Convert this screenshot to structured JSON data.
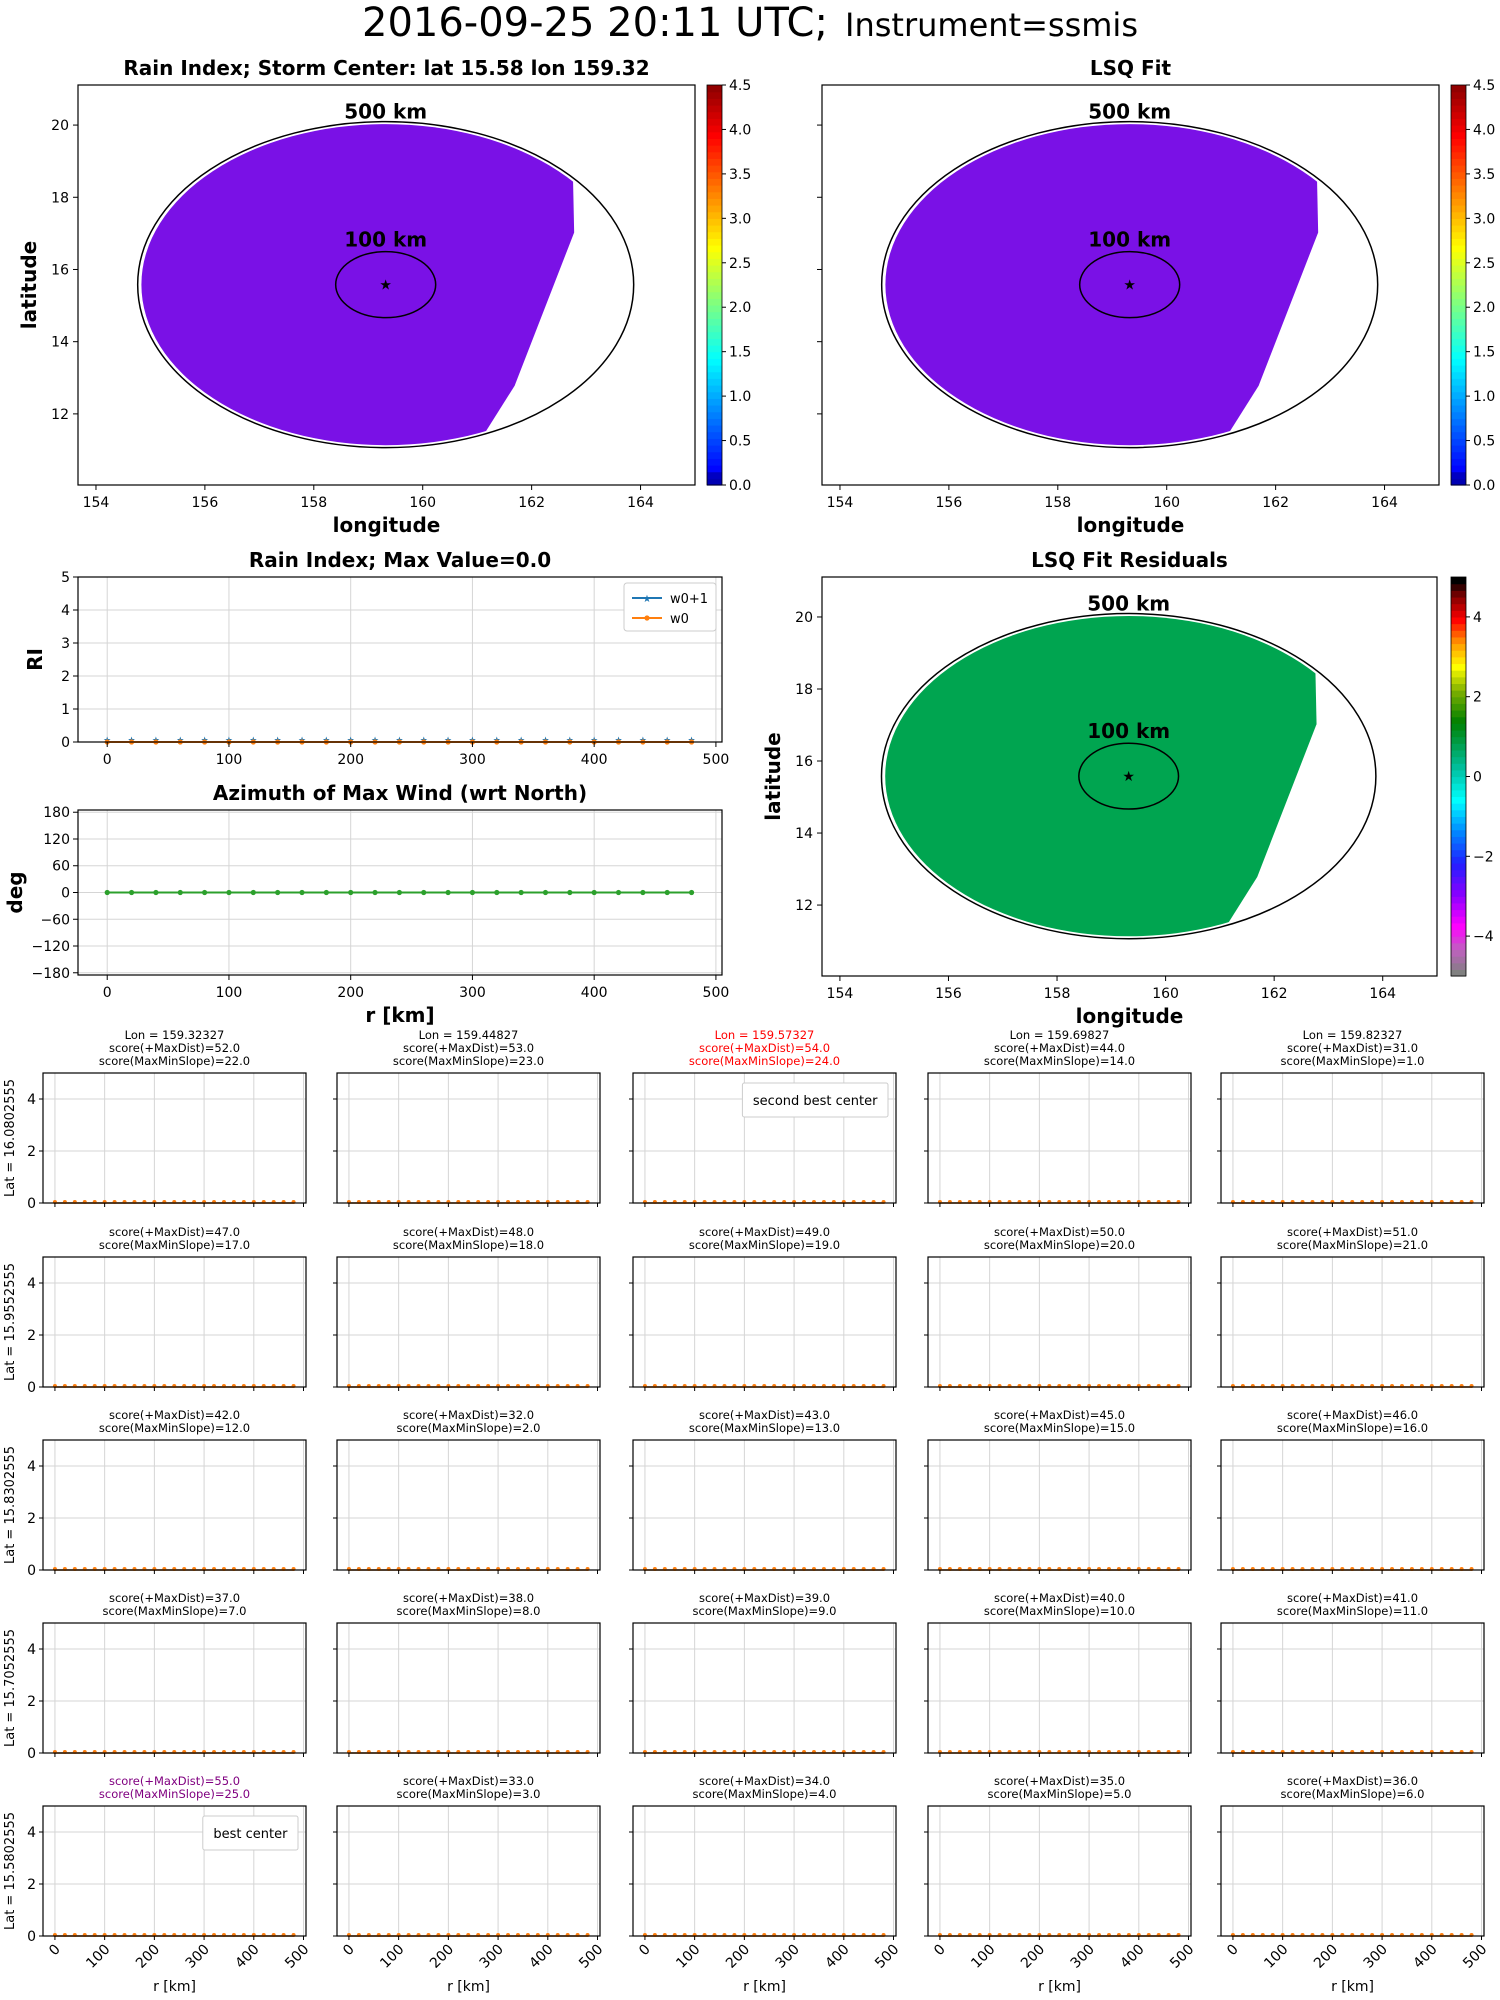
{
  "suptitle": {
    "main": "2016-09-25 20:11 UTC;",
    "instrument": "Instrument=ssmis"
  },
  "chart_data": [
    {
      "id": "rain-index-map",
      "type": "heatmap",
      "title": "Rain Index; Storm Center: lat 15.58 lon 159.32",
      "xlabel": "longitude",
      "ylabel": "latitude",
      "xlim": [
        153.67,
        165.0
      ],
      "ylim": [
        10.03,
        21.11
      ],
      "xticks": [
        154,
        156,
        158,
        160,
        162,
        164
      ],
      "yticks": [
        12,
        14,
        16,
        18,
        20
      ],
      "storm_center": {
        "lat": 15.58,
        "lon": 159.32
      },
      "rings": [
        {
          "label": "500 km",
          "radius_km": 500
        },
        {
          "label": "100 km",
          "radius_km": 100
        }
      ],
      "field_value": 0.0,
      "fill_color": "#7a11e6",
      "colorbar": {
        "min": 0.0,
        "max": 4.5,
        "ticks": [
          "0.0",
          "0.5",
          "1.0",
          "1.5",
          "2.0",
          "2.5",
          "3.0",
          "3.5",
          "4.0",
          "4.5"
        ],
        "cmap": "jet"
      }
    },
    {
      "id": "lsq-fit-map",
      "type": "heatmap",
      "title": "LSQ Fit",
      "xlabel": "longitude",
      "ylabel": "",
      "xlim": [
        153.67,
        165.0
      ],
      "ylim": [
        10.03,
        21.11
      ],
      "xticks": [
        154,
        156,
        158,
        160,
        162,
        164
      ],
      "yticks": [
        12,
        14,
        16,
        18,
        20
      ],
      "storm_center": {
        "lat": 15.58,
        "lon": 159.32
      },
      "rings": [
        {
          "label": "500 km",
          "radius_km": 500
        },
        {
          "label": "100 km",
          "radius_km": 100
        }
      ],
      "field_value": 0.0,
      "fill_color": "#7a11e6",
      "colorbar": {
        "min": 0.0,
        "max": 4.5,
        "ticks": [
          "0.0",
          "0.5",
          "1.0",
          "1.5",
          "2.0",
          "2.5",
          "3.0",
          "3.5",
          "4.0",
          "4.5"
        ],
        "cmap": "jet"
      }
    },
    {
      "id": "rain-index-profile",
      "type": "line",
      "title": "Rain Index; Max Value=0.0",
      "xlabel": "",
      "ylabel": "RI",
      "xlim": [
        -24,
        505
      ],
      "ylim": [
        0,
        5
      ],
      "xticks": [
        0,
        100,
        200,
        300,
        400,
        500
      ],
      "yticks": [
        0,
        1,
        2,
        3,
        4,
        5
      ],
      "grid": true,
      "legend": "top-right",
      "x": [
        0,
        20,
        40,
        60,
        80,
        100,
        120,
        140,
        160,
        180,
        200,
        220,
        240,
        260,
        280,
        300,
        320,
        340,
        360,
        380,
        400,
        420,
        440,
        460,
        480
      ],
      "series": [
        {
          "name": "w0+1",
          "color": "#1f77b4",
          "marker": "star",
          "values": [
            0,
            0,
            0,
            0,
            0,
            0,
            0,
            0,
            0,
            0,
            0,
            0,
            0,
            0,
            0,
            0,
            0,
            0,
            0,
            0,
            0,
            0,
            0,
            0,
            0
          ]
        },
        {
          "name": "w0",
          "color": "#ff7f0e",
          "marker": "dot",
          "values": [
            0,
            0,
            0,
            0,
            0,
            0,
            0,
            0,
            0,
            0,
            0,
            0,
            0,
            0,
            0,
            0,
            0,
            0,
            0,
            0,
            0,
            0,
            0,
            0,
            0
          ]
        }
      ]
    },
    {
      "id": "azimuth-profile",
      "type": "line",
      "title": "Azimuth of Max Wind (wrt North)",
      "xlabel": "r [km]",
      "ylabel": "deg",
      "xlim": [
        -24,
        505
      ],
      "ylim": [
        -185,
        185
      ],
      "xticks": [
        0,
        100,
        200,
        300,
        400,
        500
      ],
      "yticks": [
        180,
        120,
        60,
        0,
        -60,
        -120,
        -180
      ],
      "ytick_labels": [
        "180",
        "120",
        "60",
        "0",
        "−60",
        "−120",
        "−180"
      ],
      "grid": true,
      "x": [
        0,
        20,
        40,
        60,
        80,
        100,
        120,
        140,
        160,
        180,
        200,
        220,
        240,
        260,
        280,
        300,
        320,
        340,
        360,
        380,
        400,
        420,
        440,
        460,
        480
      ],
      "series": [
        {
          "name": "azimuth",
          "color": "#2ca02c",
          "marker": "dot",
          "values": [
            0,
            0,
            0,
            0,
            0,
            0,
            0,
            0,
            0,
            0,
            0,
            0,
            0,
            0,
            0,
            0,
            0,
            0,
            0,
            0,
            0,
            0,
            0,
            0,
            0
          ]
        }
      ]
    },
    {
      "id": "lsq-fit-residuals-map",
      "type": "heatmap",
      "title": "LSQ Fit Residuals",
      "xlabel": "longitude",
      "ylabel": "latitude",
      "xlim": [
        153.67,
        165.0
      ],
      "ylim": [
        10.03,
        21.11
      ],
      "xticks": [
        154,
        156,
        158,
        160,
        162,
        164
      ],
      "yticks": [
        12,
        14,
        16,
        18,
        20
      ],
      "storm_center": {
        "lat": 15.58,
        "lon": 159.32
      },
      "rings": [
        {
          "label": "500 km",
          "radius_km": 500
        },
        {
          "label": "100 km",
          "radius_km": 100
        }
      ],
      "field_value": 0.0,
      "fill_color": "#00a550",
      "colorbar": {
        "min": -5,
        "max": 5,
        "ticks": [
          "4",
          "2",
          "0",
          "−2",
          "−4"
        ],
        "tick_values": [
          4,
          2,
          0,
          -2,
          -4
        ],
        "cmap": "gist_ncar_r"
      }
    },
    {
      "id": "center-search-grid",
      "type": "line",
      "xlabel": "r [km]",
      "xlim": [
        -24,
        505
      ],
      "ylim": [
        0,
        5
      ],
      "xticks": [
        "0",
        "100",
        "200",
        "300",
        "400",
        "500"
      ],
      "yticks": [
        "0",
        "2",
        "4"
      ],
      "grid": true,
      "x": [
        0,
        20,
        40,
        60,
        80,
        100,
        120,
        140,
        160,
        180,
        200,
        220,
        240,
        260,
        280,
        300,
        320,
        340,
        360,
        380,
        400,
        420,
        440,
        460,
        480
      ],
      "values_all_panels": [
        0,
        0,
        0,
        0,
        0,
        0,
        0,
        0,
        0,
        0,
        0,
        0,
        0,
        0,
        0,
        0,
        0,
        0,
        0,
        0,
        0,
        0,
        0,
        0,
        0
      ],
      "row_labels": [
        "Lat = 16.0802555",
        "Lat = 15.9552555",
        "Lat = 15.8302555",
        "Lat = 15.7052555",
        "Lat = 15.5802555"
      ],
      "col_labels": [
        "Lon = 159.32327",
        "Lon = 159.44827",
        "Lon = 159.57327",
        "Lon = 159.69827",
        "Lon = 159.82327"
      ],
      "panels": [
        [
          {
            "maxdist": "score(+MaxDist)=52.0",
            "slope": "score(MaxMinSlope)=22.0",
            "color": "#000000"
          },
          {
            "maxdist": "score(+MaxDist)=53.0",
            "slope": "score(MaxMinSlope)=23.0",
            "color": "#000000"
          },
          {
            "maxdist": "score(+MaxDist)=54.0",
            "slope": "score(MaxMinSlope)=24.0",
            "color": "#ff0000",
            "legend": "second best center"
          },
          {
            "maxdist": "score(+MaxDist)=44.0",
            "slope": "score(MaxMinSlope)=14.0",
            "color": "#000000"
          },
          {
            "maxdist": "score(+MaxDist)=31.0",
            "slope": "score(MaxMinSlope)=1.0",
            "color": "#000000"
          }
        ],
        [
          {
            "maxdist": "score(+MaxDist)=47.0",
            "slope": "score(MaxMinSlope)=17.0",
            "color": "#000000"
          },
          {
            "maxdist": "score(+MaxDist)=48.0",
            "slope": "score(MaxMinSlope)=18.0",
            "color": "#000000"
          },
          {
            "maxdist": "score(+MaxDist)=49.0",
            "slope": "score(MaxMinSlope)=19.0",
            "color": "#000000"
          },
          {
            "maxdist": "score(+MaxDist)=50.0",
            "slope": "score(MaxMinSlope)=20.0",
            "color": "#000000"
          },
          {
            "maxdist": "score(+MaxDist)=51.0",
            "slope": "score(MaxMinSlope)=21.0",
            "color": "#000000"
          }
        ],
        [
          {
            "maxdist": "score(+MaxDist)=42.0",
            "slope": "score(MaxMinSlope)=12.0",
            "color": "#000000"
          },
          {
            "maxdist": "score(+MaxDist)=32.0",
            "slope": "score(MaxMinSlope)=2.0",
            "color": "#000000"
          },
          {
            "maxdist": "score(+MaxDist)=43.0",
            "slope": "score(MaxMinSlope)=13.0",
            "color": "#000000"
          },
          {
            "maxdist": "score(+MaxDist)=45.0",
            "slope": "score(MaxMinSlope)=15.0",
            "color": "#000000"
          },
          {
            "maxdist": "score(+MaxDist)=46.0",
            "slope": "score(MaxMinSlope)=16.0",
            "color": "#000000"
          }
        ],
        [
          {
            "maxdist": "score(+MaxDist)=37.0",
            "slope": "score(MaxMinSlope)=7.0",
            "color": "#000000"
          },
          {
            "maxdist": "score(+MaxDist)=38.0",
            "slope": "score(MaxMinSlope)=8.0",
            "color": "#000000"
          },
          {
            "maxdist": "score(+MaxDist)=39.0",
            "slope": "score(MaxMinSlope)=9.0",
            "color": "#000000"
          },
          {
            "maxdist": "score(+MaxDist)=40.0",
            "slope": "score(MaxMinSlope)=10.0",
            "color": "#000000"
          },
          {
            "maxdist": "score(+MaxDist)=41.0",
            "slope": "score(MaxMinSlope)=11.0",
            "color": "#000000"
          }
        ],
        [
          {
            "maxdist": "score(+MaxDist)=55.0",
            "slope": "score(MaxMinSlope)=25.0",
            "color": "#800080",
            "legend": "best center"
          },
          {
            "maxdist": "score(+MaxDist)=33.0",
            "slope": "score(MaxMinSlope)=3.0",
            "color": "#000000"
          },
          {
            "maxdist": "score(+MaxDist)=34.0",
            "slope": "score(MaxMinSlope)=4.0",
            "color": "#000000"
          },
          {
            "maxdist": "score(+MaxDist)=35.0",
            "slope": "score(MaxMinSlope)=5.0",
            "color": "#000000"
          },
          {
            "maxdist": "score(+MaxDist)=36.0",
            "slope": "score(MaxMinSlope)=6.0",
            "color": "#000000"
          }
        ]
      ]
    }
  ]
}
